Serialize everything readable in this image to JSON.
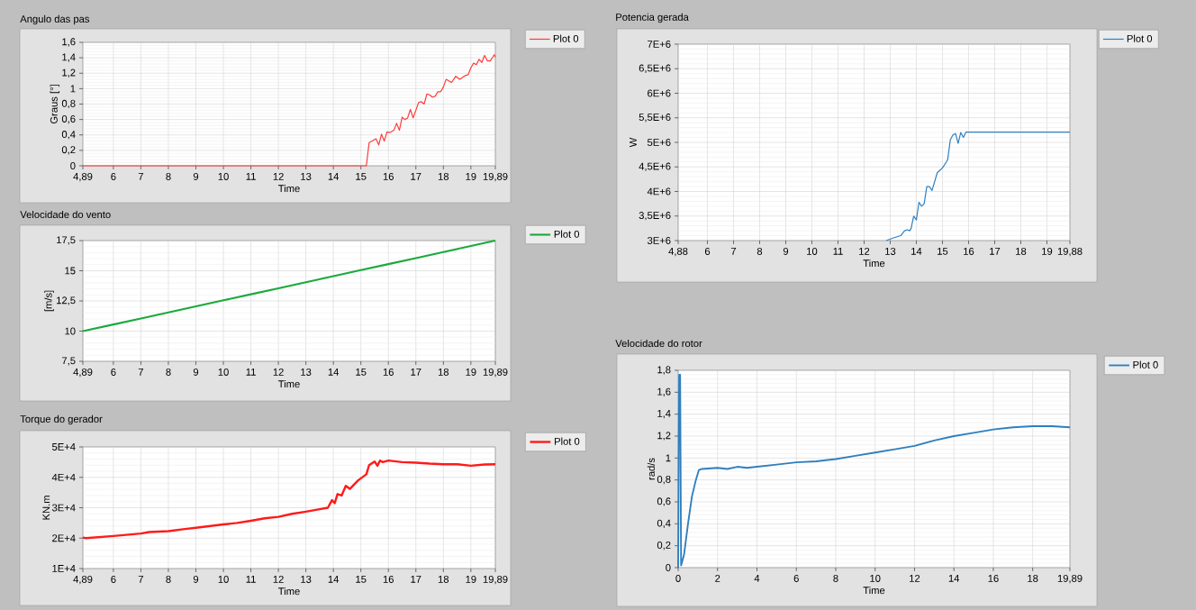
{
  "chart_data": [
    {
      "type": "line",
      "title": "Angulo das pas",
      "xlabel": "Time",
      "ylabel": "Graus [°]",
      "x": [
        4.89,
        15.2,
        15.3,
        15.45,
        15.55,
        15.65,
        15.75,
        15.85,
        15.95,
        16.05,
        16.2,
        16.3,
        16.4,
        16.5,
        16.6,
        16.7,
        16.8,
        16.9,
        17.0,
        17.1,
        17.2,
        17.3,
        17.4,
        17.5,
        17.6,
        17.7,
        17.8,
        17.9,
        18.0,
        18.1,
        18.2,
        18.3,
        18.45,
        18.6,
        18.8,
        18.9,
        19.0,
        19.1,
        19.2,
        19.3,
        19.4,
        19.5,
        19.6,
        19.7,
        19.8,
        19.85,
        19.89
      ],
      "series": [
        {
          "name": "Plot 0",
          "color": "#ff3b3b",
          "values": [
            0,
            0,
            0.3,
            0.33,
            0.35,
            0.27,
            0.41,
            0.32,
            0.44,
            0.43,
            0.46,
            0.55,
            0.46,
            0.63,
            0.6,
            0.62,
            0.73,
            0.62,
            0.72,
            0.82,
            0.83,
            0.8,
            0.93,
            0.92,
            0.89,
            0.9,
            0.96,
            0.96,
            1.02,
            1.12,
            1.1,
            1.08,
            1.16,
            1.12,
            1.17,
            1.18,
            1.27,
            1.33,
            1.31,
            1.38,
            1.34,
            1.43,
            1.36,
            1.36,
            1.41,
            1.44,
            1.41
          ]
        }
      ],
      "xlim": [
        4.89,
        19.89
      ],
      "ylim": [
        0,
        1.6
      ],
      "xticks": [
        {
          "value": 4.89,
          "label": "4,89"
        },
        6,
        7,
        8,
        9,
        10,
        11,
        12,
        13,
        14,
        15,
        16,
        17,
        18,
        19,
        {
          "value": 19.89,
          "label": "19,89"
        }
      ],
      "yticks": [
        0,
        {
          "value": 0.2,
          "label": "0,2"
        },
        {
          "value": 0.4,
          "label": "0,4"
        },
        {
          "value": 0.6,
          "label": "0,6"
        },
        {
          "value": 0.8,
          "label": "0,8"
        },
        1,
        {
          "value": 1.2,
          "label": "1,2"
        },
        {
          "value": 1.4,
          "label": "1,4"
        },
        {
          "value": 1.6,
          "label": "1,6"
        }
      ],
      "grid": true,
      "legend": "top right"
    },
    {
      "type": "line",
      "title": "Potencia gerada",
      "xlabel": "Time",
      "ylabel": "W",
      "x": [
        12.85,
        13.1,
        13.4,
        13.55,
        13.65,
        13.75,
        13.8,
        13.9,
        14.0,
        14.1,
        14.2,
        14.3,
        14.4,
        14.5,
        14.6,
        14.8,
        15.0,
        15.15,
        15.2,
        15.3,
        15.4,
        15.5,
        15.6,
        15.7,
        15.8,
        15.9,
        19.88
      ],
      "series": [
        {
          "name": "Plot 0",
          "color": "#2f7fbf",
          "values": [
            3000000,
            3050000,
            3100000,
            3200000,
            3220000,
            3200000,
            3250000,
            3500000,
            3420000,
            3780000,
            3700000,
            3750000,
            4100000,
            4100000,
            4020000,
            4380000,
            4480000,
            4600000,
            4650000,
            5050000,
            5150000,
            5180000,
            4980000,
            5200000,
            5100000,
            5210000,
            5210000
          ]
        }
      ],
      "xlim": [
        4.88,
        19.88
      ],
      "ylim": [
        3000000,
        7000000
      ],
      "xticks": [
        {
          "value": 4.88,
          "label": "4,88"
        },
        6,
        7,
        8,
        9,
        10,
        11,
        12,
        13,
        14,
        15,
        16,
        17,
        18,
        19,
        {
          "value": 19.88,
          "label": "19,88"
        }
      ],
      "yticks": [
        {
          "value": 3000000,
          "label": "3E+6"
        },
        {
          "value": 3500000,
          "label": "3,5E+6"
        },
        {
          "value": 4000000,
          "label": "4E+6"
        },
        {
          "value": 4500000,
          "label": "4,5E+6"
        },
        {
          "value": 5000000,
          "label": "5E+6"
        },
        {
          "value": 5500000,
          "label": "5,5E+6"
        },
        {
          "value": 6000000,
          "label": "6E+6"
        },
        {
          "value": 6500000,
          "label": "6,5E+6"
        },
        {
          "value": 7000000,
          "label": "7E+6"
        }
      ],
      "grid": true,
      "legend": "top right"
    },
    {
      "type": "line",
      "title": "Velocidade do vento",
      "xlabel": "Time",
      "ylabel": "[m/s]",
      "x": [
        4.89,
        6,
        7,
        8,
        9,
        10,
        11,
        12,
        13,
        14,
        15,
        16,
        17,
        18,
        19,
        19.89
      ],
      "series": [
        {
          "name": "Plot 0",
          "color": "#1aaa3c",
          "values": [
            10,
            10.55,
            11.05,
            11.55,
            12.05,
            12.55,
            13.05,
            13.55,
            14.05,
            14.55,
            15.05,
            15.55,
            16.05,
            16.55,
            17.05,
            17.5
          ]
        }
      ],
      "xlim": [
        4.89,
        19.89
      ],
      "ylim": [
        7.5,
        17.5
      ],
      "xticks": [
        {
          "value": 4.89,
          "label": "4,89"
        },
        6,
        7,
        8,
        9,
        10,
        11,
        12,
        13,
        14,
        15,
        16,
        17,
        18,
        19,
        {
          "value": 19.89,
          "label": "19,89"
        }
      ],
      "yticks": [
        {
          "value": 7.5,
          "label": "7,5"
        },
        10,
        {
          "value": 12.5,
          "label": "12,5"
        },
        15,
        {
          "value": 17.5,
          "label": "17,5"
        }
      ],
      "grid": true,
      "legend": "top right"
    },
    {
      "type": "line",
      "title": "Torque do gerador",
      "xlabel": "Time",
      "ylabel": "KN.m",
      "x": [
        4.89,
        5.0,
        6,
        7,
        7.3,
        8,
        8.6,
        9,
        10,
        10.5,
        11,
        11.5,
        12,
        12.5,
        13,
        13.5,
        13.8,
        13.95,
        14.05,
        14.15,
        14.3,
        14.45,
        14.6,
        14.9,
        15.2,
        15.3,
        15.5,
        15.6,
        15.7,
        15.8,
        16.0,
        16.5,
        17,
        17.5,
        18,
        18.5,
        19,
        19.5,
        19.89
      ],
      "series": [
        {
          "name": "Plot 0",
          "color": "#ff1a1a",
          "values": [
            20200,
            20000,
            20700,
            21500,
            22000,
            22300,
            23000,
            23400,
            24500,
            25000,
            25700,
            26500,
            27000,
            28000,
            28700,
            29500,
            30000,
            32500,
            31500,
            34500,
            34000,
            37200,
            36200,
            39000,
            41000,
            44000,
            45200,
            43800,
            45500,
            45000,
            45500,
            45000,
            44800,
            44500,
            44300,
            44300,
            43800,
            44200,
            44300
          ]
        }
      ],
      "xlim": [
        4.89,
        19.89
      ],
      "ylim": [
        10000,
        50000
      ],
      "xticks": [
        {
          "value": 4.89,
          "label": "4,89"
        },
        6,
        7,
        8,
        9,
        10,
        11,
        12,
        13,
        14,
        15,
        16,
        17,
        18,
        19,
        {
          "value": 19.89,
          "label": "19,89"
        }
      ],
      "yticks": [
        {
          "value": 10000,
          "label": "1E+4"
        },
        {
          "value": 20000,
          "label": "2E+4"
        },
        {
          "value": 30000,
          "label": "3E+4"
        },
        {
          "value": 40000,
          "label": "4E+4"
        },
        {
          "value": 50000,
          "label": "5E+4"
        }
      ],
      "grid": true,
      "legend": "top right"
    },
    {
      "type": "line",
      "title": "Velocidade do rotor",
      "xlabel": "Time",
      "ylabel": "rad/s",
      "x": [
        0,
        0.05,
        0.1,
        0.15,
        0.3,
        0.5,
        0.7,
        0.9,
        1.05,
        1.2,
        2,
        2.5,
        3,
        3.5,
        4,
        5,
        6,
        7,
        8,
        9,
        10,
        11,
        12,
        13,
        14,
        15,
        16,
        17,
        18,
        19,
        19.89
      ],
      "series": [
        {
          "name": "Plot 0",
          "color": "#2f7fbf",
          "values": [
            0,
            1.76,
            1.76,
            0.02,
            0.12,
            0.4,
            0.65,
            0.8,
            0.89,
            0.9,
            0.91,
            0.9,
            0.92,
            0.91,
            0.92,
            0.94,
            0.96,
            0.97,
            0.99,
            1.02,
            1.05,
            1.08,
            1.11,
            1.16,
            1.2,
            1.23,
            1.26,
            1.28,
            1.29,
            1.29,
            1.28
          ]
        }
      ],
      "xlim": [
        0,
        19.89
      ],
      "ylim": [
        0,
        1.8
      ],
      "xticks": [
        0,
        2,
        4,
        6,
        8,
        10,
        12,
        14,
        16,
        18,
        {
          "value": 19.89,
          "label": "19,89"
        }
      ],
      "yticks": [
        0,
        {
          "value": 0.2,
          "label": "0,2"
        },
        {
          "value": 0.4,
          "label": "0,4"
        },
        {
          "value": 0.6,
          "label": "0,6"
        },
        {
          "value": 0.8,
          "label": "0,8"
        },
        1,
        {
          "value": 1.2,
          "label": "1,2"
        },
        {
          "value": 1.4,
          "label": "1,4"
        },
        {
          "value": 1.6,
          "label": "1,6"
        },
        {
          "value": 1.8,
          "label": "1,8"
        }
      ],
      "grid": true,
      "legend": "top right"
    }
  ]
}
